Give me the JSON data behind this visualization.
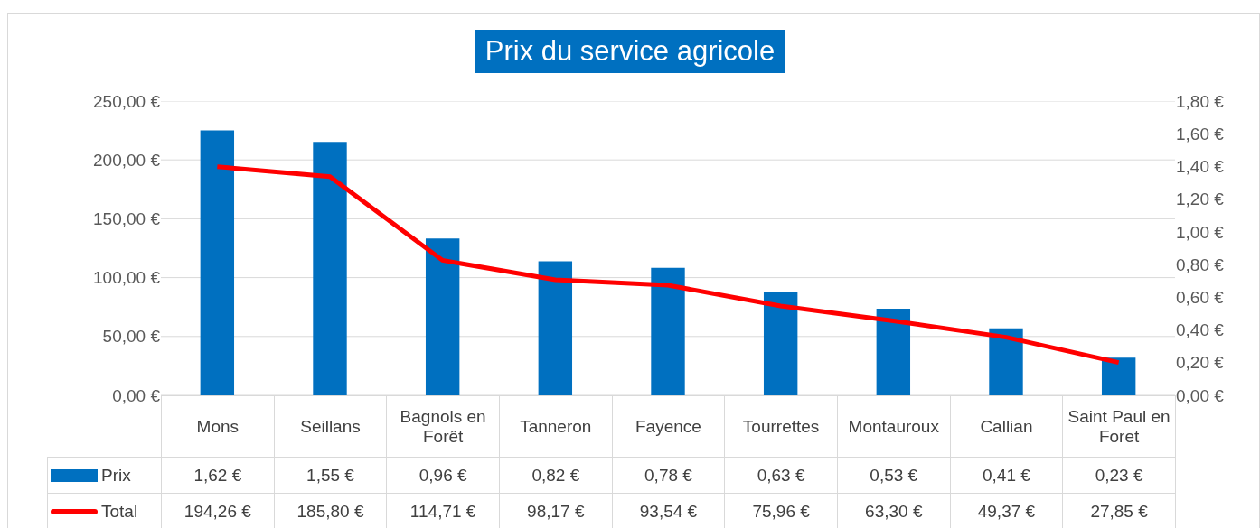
{
  "chart_data": {
    "type": "bar",
    "title": "Prix du service agricole",
    "categories": [
      "Mons",
      "Seillans",
      "Bagnols en Forêt",
      "Tanneron",
      "Fayence",
      "Tourrettes",
      "Montauroux",
      "Callian",
      "Saint Paul en Foret"
    ],
    "series": [
      {
        "name": "Prix",
        "axis": "y2",
        "color": "#0070c0",
        "values": [
          1.62,
          1.55,
          0.96,
          0.82,
          0.78,
          0.63,
          0.53,
          0.41,
          0.23
        ],
        "value_labels": [
          "1,62 €",
          "1,55 €",
          "0,96 €",
          "0,82 €",
          "0,78 €",
          "0,63 €",
          "0,53 €",
          "0,41 €",
          "0,23 €"
        ]
      },
      {
        "name": "Total",
        "type": "line",
        "axis": "y",
        "color": "#ff0000",
        "values": [
          194.26,
          185.8,
          114.71,
          98.17,
          93.54,
          75.96,
          63.3,
          49.37,
          27.85
        ],
        "value_labels": [
          "194,26 €",
          "185,80 €",
          "114,71 €",
          "98,17 €",
          "93,54 €",
          "75,96 €",
          "63,30 €",
          "49,37 €",
          "27,85 €"
        ]
      }
    ],
    "ylim": [
      0,
      250
    ],
    "yticks": [
      {
        "value": 0,
        "label": "0,00 €"
      },
      {
        "value": 50,
        "label": "50,00 €"
      },
      {
        "value": 100,
        "label": "100,00 €"
      },
      {
        "value": 150,
        "label": "150,00 €"
      },
      {
        "value": 200,
        "label": "200,00 €"
      },
      {
        "value": 250,
        "label": "250,00 €"
      }
    ],
    "y2lim": [
      0,
      1.8
    ],
    "y2ticks": [
      {
        "value": 0,
        "label": "0,00 €"
      },
      {
        "value": 0.2,
        "label": "0,20 €"
      },
      {
        "value": 0.4,
        "label": "0,40 €"
      },
      {
        "value": 0.6,
        "label": "0,60 €"
      },
      {
        "value": 0.8,
        "label": "0,80 €"
      },
      {
        "value": 1,
        "label": "1,00 €"
      },
      {
        "value": 1.2,
        "label": "1,20 €"
      },
      {
        "value": 1.4,
        "label": "1,40 €"
      },
      {
        "value": 1.6,
        "label": "1,60 €"
      },
      {
        "value": 1.8,
        "label": "1,80 €"
      }
    ],
    "grid": "y",
    "legend": "bottom",
    "line_style": "solid"
  }
}
